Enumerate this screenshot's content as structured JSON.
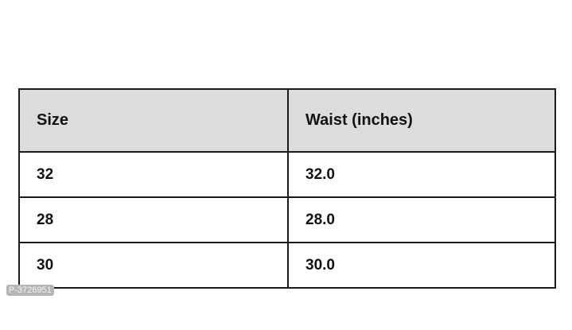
{
  "table": {
    "headers": [
      "Size",
      "Waist (inches)"
    ],
    "rows": [
      [
        "32",
        "32.0"
      ],
      [
        "28",
        "28.0"
      ],
      [
        "30",
        "30.0"
      ]
    ]
  },
  "watermark": "P-3726951"
}
